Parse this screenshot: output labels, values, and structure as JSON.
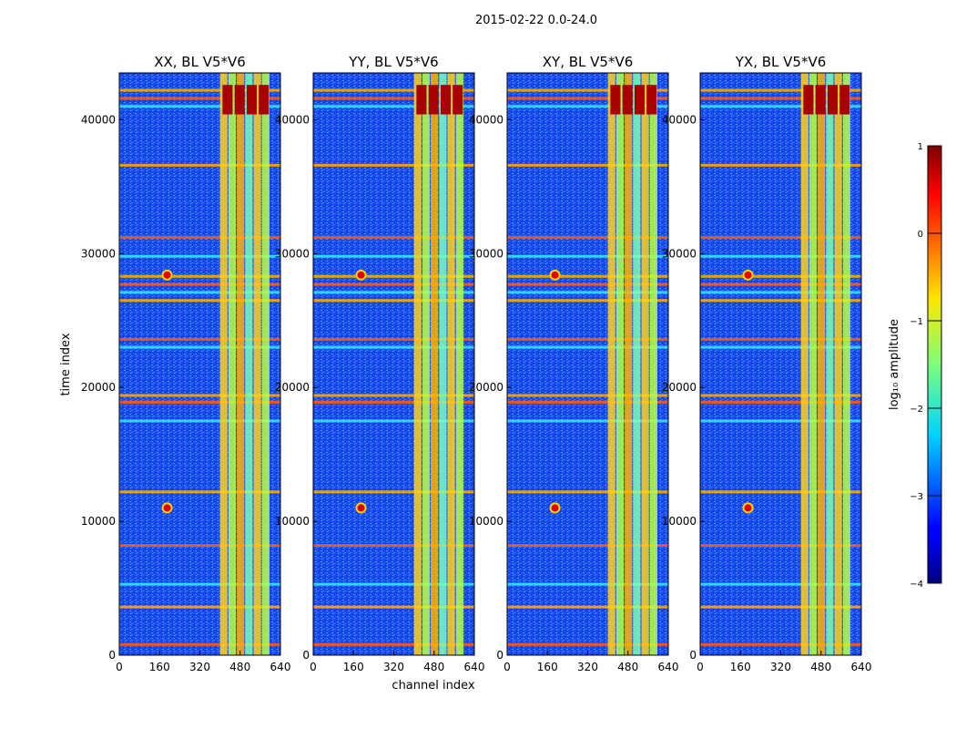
{
  "figure": {
    "suptitle": "2015-02-22 0.0-24.0"
  },
  "chart_data": {
    "type": "heatmap",
    "colormap": "jet",
    "xlabel": "channel index",
    "ylabel": "time index",
    "xlim": [
      0,
      640
    ],
    "ylim": [
      0,
      43500
    ],
    "xticks": [
      0,
      160,
      320,
      480,
      640
    ],
    "yticks": [
      0,
      10000,
      20000,
      30000,
      40000
    ],
    "panels": [
      {
        "title": "XX, BL V5*V6",
        "band_channels": [
          400,
          600
        ]
      },
      {
        "title": "YY, BL V5*V6",
        "band_channels": [
          400,
          600
        ]
      },
      {
        "title": "XY, BL V5*V6",
        "band_channels": [
          400,
          600
        ]
      },
      {
        "title": "YX, BL V5*V6",
        "band_channels": [
          400,
          600
        ]
      }
    ],
    "bright_rows": [
      800,
      3600,
      5300,
      8200,
      12200,
      17500,
      18900,
      19400,
      23000,
      23600,
      26500,
      27100,
      27700,
      28300,
      29800,
      31200,
      36600,
      41000,
      41600,
      42200
    ],
    "bright_sources": [
      {
        "channel": 190,
        "time": 11000
      },
      {
        "channel": 190,
        "time": 28400
      }
    ],
    "colorbar": {
      "label": "log₁₀ amplitude",
      "min": -4,
      "max": 1,
      "ticks": [
        1,
        0,
        -1,
        -2,
        -3,
        -4
      ],
      "tick_labels": [
        "1",
        "0",
        "−1",
        "−2",
        "−3",
        "−4"
      ]
    }
  }
}
